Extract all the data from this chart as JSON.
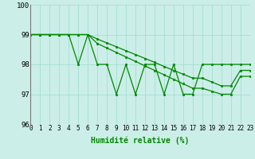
{
  "xlabel": "Humidité relative (%)",
  "xlim": [
    0,
    23
  ],
  "ylim": [
    96,
    100
  ],
  "yticks": [
    96,
    97,
    98,
    99,
    100
  ],
  "xticks": [
    0,
    1,
    2,
    3,
    4,
    5,
    6,
    7,
    8,
    9,
    10,
    11,
    12,
    13,
    14,
    15,
    16,
    17,
    18,
    19,
    20,
    21,
    22,
    23
  ],
  "background_color": "#cceee8",
  "grid_color": "#99ddcc",
  "line_color": "#008800",
  "lines": [
    [
      99,
      99,
      99,
      99,
      99,
      99,
      99,
      98.85,
      98.72,
      98.59,
      98.46,
      98.33,
      98.2,
      98.07,
      97.93,
      97.8,
      97.67,
      97.54,
      97.54,
      97.41,
      97.28,
      97.28,
      97.8,
      97.8
    ],
    [
      99,
      99,
      99,
      99,
      99,
      99,
      99,
      98.7,
      98.55,
      98.4,
      98.25,
      98.1,
      97.95,
      97.8,
      97.65,
      97.5,
      97.35,
      97.2,
      97.2,
      97.1,
      97.0,
      97.0,
      97.6,
      97.6
    ],
    [
      99,
      99,
      99,
      99,
      99,
      98,
      99,
      98,
      98,
      97,
      98,
      97,
      98,
      98,
      97,
      98,
      97,
      97,
      98,
      98,
      98,
      98,
      98,
      98
    ]
  ],
  "xlabel_fontsize": 7,
  "tick_fontsize": 5.5,
  "ytick_fontsize": 6.5
}
